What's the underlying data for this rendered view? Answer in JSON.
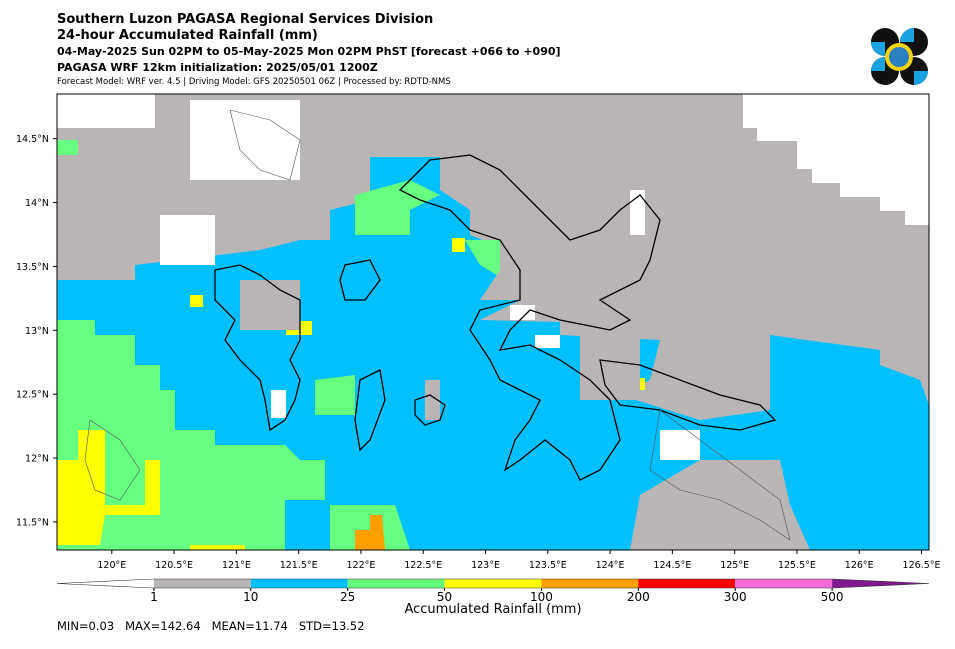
{
  "header": {
    "title": "Southern Luzon PAGASA Regional Services Division",
    "subtitle": "24-hour Accumulated Rainfall (mm)",
    "period": "04-May-2025 Sun 02PM to 05-May-2025 Mon 02PM PhST [forecast +066 to +090]",
    "initialization": "PAGASA WRF 12km initialization: 2025/05/01 1200Z",
    "info": "Forecast Model: WRF ver. 4.5 | Driving Model: GFS 20250501 06Z | Processed by: RDTD-NMS"
  },
  "map": {
    "xlim": [
      119.56,
      126.56
    ],
    "ylim": [
      11.28,
      14.85
    ],
    "xticks": [
      {
        "value": 120,
        "label": "120°E"
      },
      {
        "value": 120.5,
        "label": "120.5°E"
      },
      {
        "value": 121,
        "label": "121°E"
      },
      {
        "value": 121.5,
        "label": "121.5°E"
      },
      {
        "value": 122,
        "label": "122°E"
      },
      {
        "value": 122.5,
        "label": "122.5°E"
      },
      {
        "value": 123,
        "label": "123°E"
      },
      {
        "value": 123.5,
        "label": "123.5°E"
      },
      {
        "value": 124,
        "label": "124°E"
      },
      {
        "value": 124.5,
        "label": "124.5°E"
      },
      {
        "value": 125,
        "label": "125°E"
      },
      {
        "value": 125.5,
        "label": "125.5°E"
      },
      {
        "value": 126,
        "label": "126°E"
      },
      {
        "value": 126.5,
        "label": "126.5°E"
      }
    ],
    "yticks": [
      {
        "value": 11.5,
        "label": "11.5°N"
      },
      {
        "value": 12,
        "label": "12°N"
      },
      {
        "value": 12.5,
        "label": "12.5°N"
      },
      {
        "value": 13,
        "label": "13°N"
      },
      {
        "value": 13.5,
        "label": "13.5°N"
      },
      {
        "value": 14,
        "label": "14°N"
      },
      {
        "value": 14.5,
        "label": "14.5°N"
      }
    ]
  },
  "colorbar": {
    "label": "Accumulated Rainfall (mm)",
    "levels": [
      1,
      10,
      25,
      50,
      100,
      200,
      300,
      500
    ],
    "colors": [
      "#ffffff",
      "#bab5b5",
      "#00c0ff",
      "#66ff80",
      "#ffff00",
      "#ffa000",
      "#ff0000",
      "#f76bd6",
      "#7e1a8c"
    ]
  },
  "stats": "MIN=0.03   MAX=142.64   MEAN=11.74   STD=13.52"
}
